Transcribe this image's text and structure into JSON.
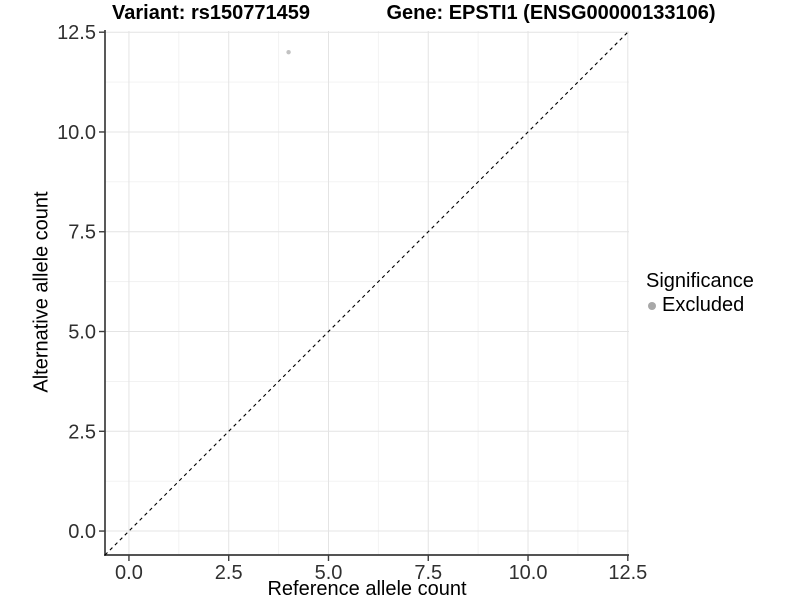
{
  "chart_data": {
    "type": "scatter",
    "title_left": "Variant: rs150771459",
    "title_right": "Gene: EPSTI1 (ENSG00000133106)",
    "xlabel": "Reference allele count",
    "ylabel": "Alternative allele count",
    "xlim": [
      -0.6,
      12.53
    ],
    "ylim": [
      -0.6,
      12.53
    ],
    "xticks": [
      0.0,
      2.5,
      5.0,
      7.5,
      10.0,
      12.5
    ],
    "yticks": [
      0.0,
      2.5,
      5.0,
      7.5,
      10.0,
      12.5
    ],
    "tick_decimals": 1,
    "grid": {
      "major": true,
      "minor": true,
      "major_color": "#e4e4e4",
      "minor_color": "#f1f1f1"
    },
    "axis_color": "#3c3c3c",
    "background_color": "#ffffff",
    "reference_line": {
      "type": "identity",
      "style": "dashed",
      "color": "#000000"
    },
    "series": [
      {
        "name": "Excluded",
        "color": "#c2c2c2",
        "points": [
          {
            "x": 4.0,
            "y": 12.0
          }
        ]
      }
    ],
    "legend": {
      "title": "Significance",
      "position": "right",
      "items": [
        {
          "label": "Excluded",
          "color": "#a8a8a8"
        }
      ]
    }
  }
}
